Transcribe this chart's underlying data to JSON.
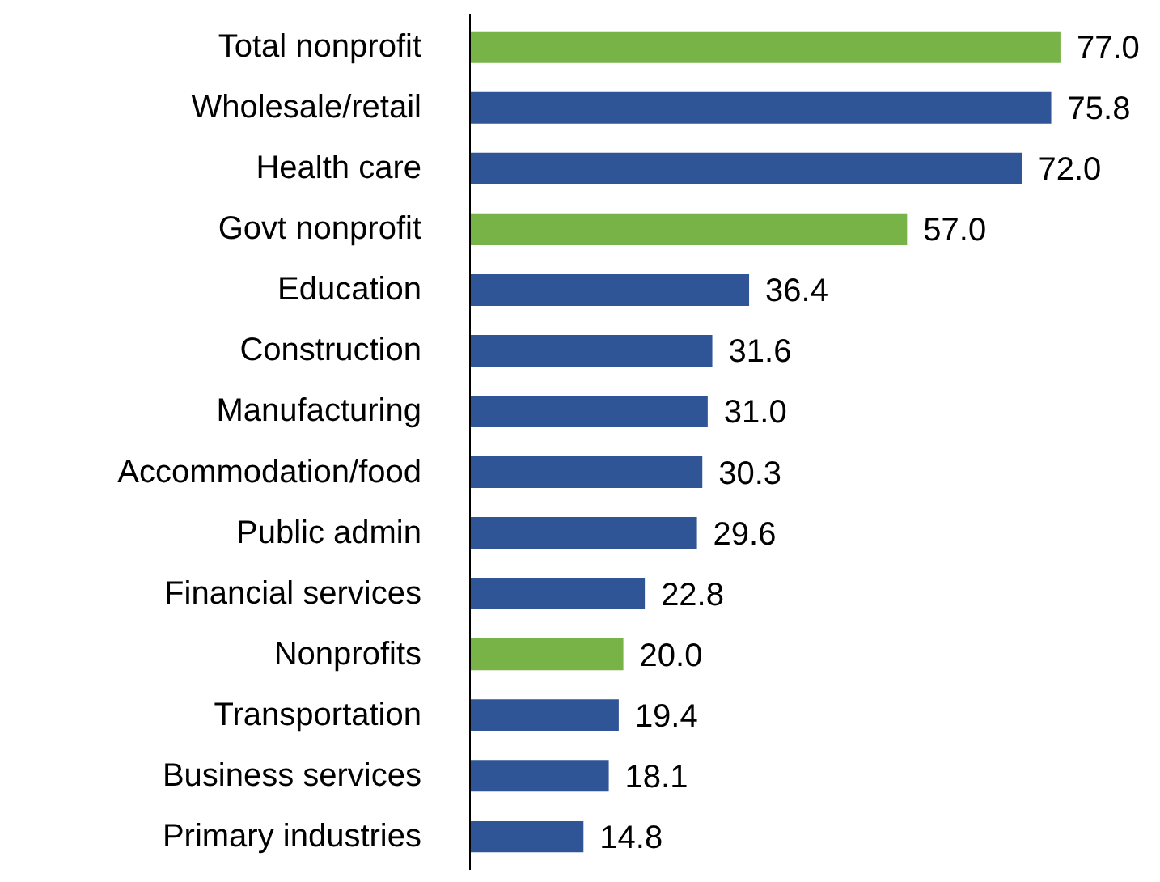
{
  "chart_data": {
    "type": "bar",
    "orientation": "horizontal",
    "value_labels": [
      "77.0",
      "75.8",
      "72.0",
      "57.0",
      "36.4",
      "31.6",
      "31.0",
      "30.3",
      "29.6",
      "22.8",
      "20.0",
      "19.4",
      "18.1",
      "14.8"
    ],
    "categories": [
      "Total nonprofit",
      "Wholesale/retail",
      "Health care",
      "Govt nonprofit",
      "Education",
      "Construction",
      "Manufacturing",
      "Accommodation/food",
      "Public admin",
      "Financial services",
      "Nonprofits",
      "Transportation",
      "Business services",
      "Primary industries"
    ],
    "values": [
      77.0,
      75.8,
      72.0,
      57.0,
      36.4,
      31.6,
      31.0,
      30.3,
      29.6,
      22.8,
      20.0,
      19.4,
      18.1,
      14.8
    ],
    "colors": [
      "#77b347",
      "#2f5597",
      "#2f5597",
      "#77b347",
      "#2f5597",
      "#2f5597",
      "#2f5597",
      "#2f5597",
      "#2f5597",
      "#2f5597",
      "#77b347",
      "#2f5597",
      "#2f5597",
      "#2f5597"
    ]
  }
}
